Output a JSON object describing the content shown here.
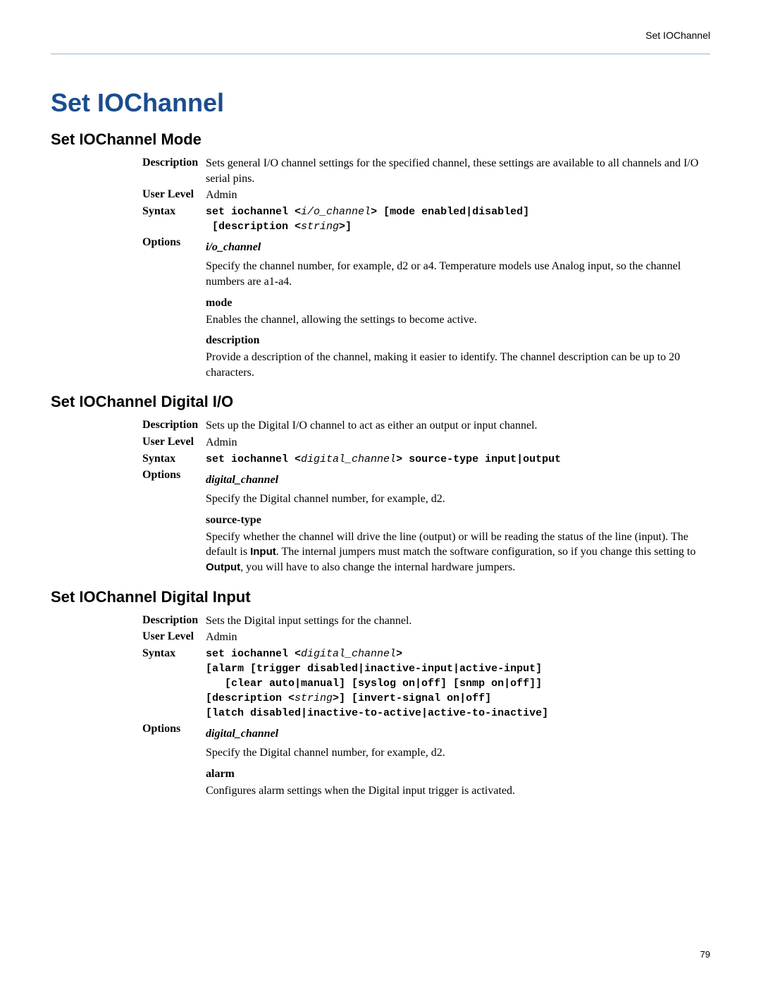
{
  "header": {
    "label": "Set IOChannel"
  },
  "page_title": "Set IOChannel",
  "page_number": "79",
  "sections": [
    {
      "title": "Set IOChannel Mode",
      "description": "Sets general I/O channel settings for the specified channel, these settings are available to all channels and I/O serial pins.",
      "user_level": "Admin",
      "syntax_plain": "set iochannel <i/o_channel> [mode enabled|disabled]\n [description <string>]",
      "options": [
        {
          "name": "i/o_channel",
          "italic": true,
          "body": "Specify the channel number, for example, d2 or a4. Temperature models use Analog input, so the channel numbers are a1-a4."
        },
        {
          "name": "mode",
          "italic": false,
          "body": "Enables the channel, allowing the settings to become active."
        },
        {
          "name": "description",
          "italic": false,
          "body": "Provide a description of the channel, making it easier to identify. The channel description can be up to 20 characters."
        }
      ]
    },
    {
      "title": "Set IOChannel Digital I/O",
      "description": "Sets up the Digital I/O channel to act as either an output or input channel.",
      "user_level": "Admin",
      "syntax_plain": "set iochannel <digital_channel> source-type input|output",
      "options": [
        {
          "name": "digital_channel",
          "italic": true,
          "body": "Specify the Digital channel number, for example, d2."
        },
        {
          "name": "source-type",
          "italic": false,
          "body_html": "Specify whether the channel will drive the line (output) or will be reading the status of the line (input). The default is <b>Input</b>. The internal jumpers must match the software configuration, so if you change this setting to <b>Output</b>, you will have to also change the internal hardware jumpers."
        }
      ]
    },
    {
      "title": "Set IOChannel Digital Input",
      "description": "Sets the Digital input settings for the channel.",
      "user_level": "Admin",
      "syntax_plain": "set iochannel <digital_channel>\n[alarm [trigger disabled|inactive-input|active-input]\n   [clear auto|manual] [syslog on|off] [snmp on|off]]\n[description <string>] [invert-signal on|off]\n[latch disabled|inactive-to-active|active-to-inactive]",
      "options": [
        {
          "name": "digital_channel",
          "italic": true,
          "body": "Specify the Digital channel number, for example, d2."
        },
        {
          "name": "alarm",
          "italic": false,
          "body": "Configures alarm settings when the Digital input trigger is activated."
        }
      ]
    }
  ],
  "labels": {
    "description": "Description",
    "user_level": "User Level",
    "syntax": "Syntax",
    "options": "Options"
  }
}
